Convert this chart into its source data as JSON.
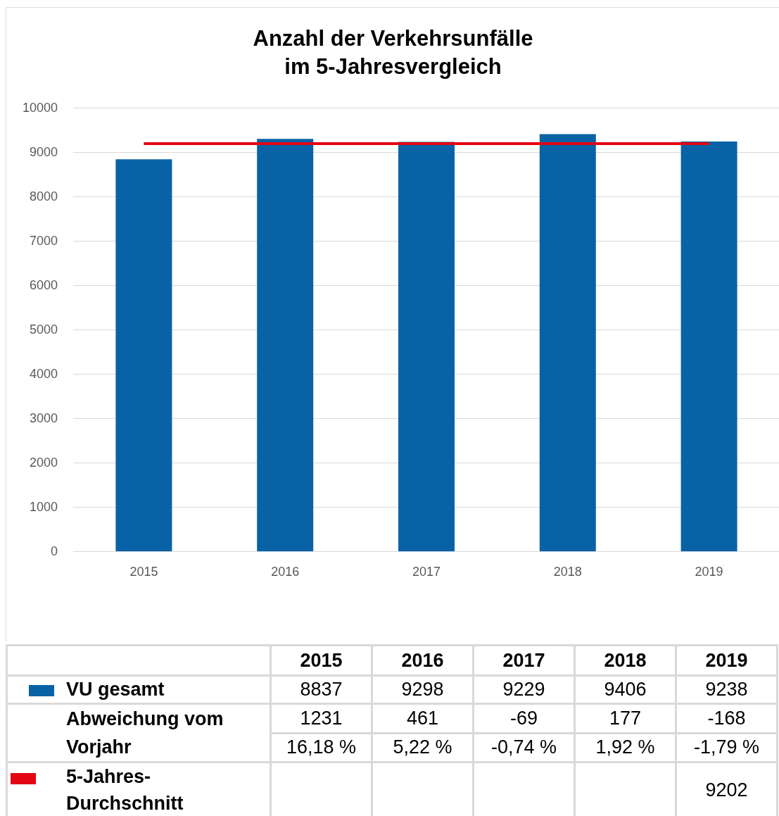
{
  "chart_data": {
    "type": "bar",
    "title": "Anzahl der Verkehrsunfälle\nim 5-Jahresvergleich",
    "categories": [
      "2015",
      "2016",
      "2017",
      "2018",
      "2019"
    ],
    "series": [
      {
        "name": "VU gesamt",
        "color": "#0a62a6",
        "values": [
          8837,
          9298,
          9229,
          9406,
          9238
        ]
      }
    ],
    "ylim": [
      0,
      10000
    ],
    "yticks": [
      0,
      1000,
      2000,
      3000,
      4000,
      5000,
      6000,
      7000,
      8000,
      9000,
      10000
    ],
    "grid": "y",
    "legend": "bottom",
    "ref_lines": [
      {
        "axis": "y",
        "value": 9202,
        "label": "5-Jahres-Durchschnitt",
        "color": "#e30613"
      }
    ],
    "annotations": [
      "8837",
      "9298",
      "9229",
      "9406",
      "9238",
      "Abweichung vom Vorjahr",
      "1231",
      "461",
      "-69",
      "177",
      "-168",
      "16,18 %",
      "5,22 %",
      "-0,74 %",
      "1,92 %",
      "-1,79 %",
      "9202"
    ]
  }
}
